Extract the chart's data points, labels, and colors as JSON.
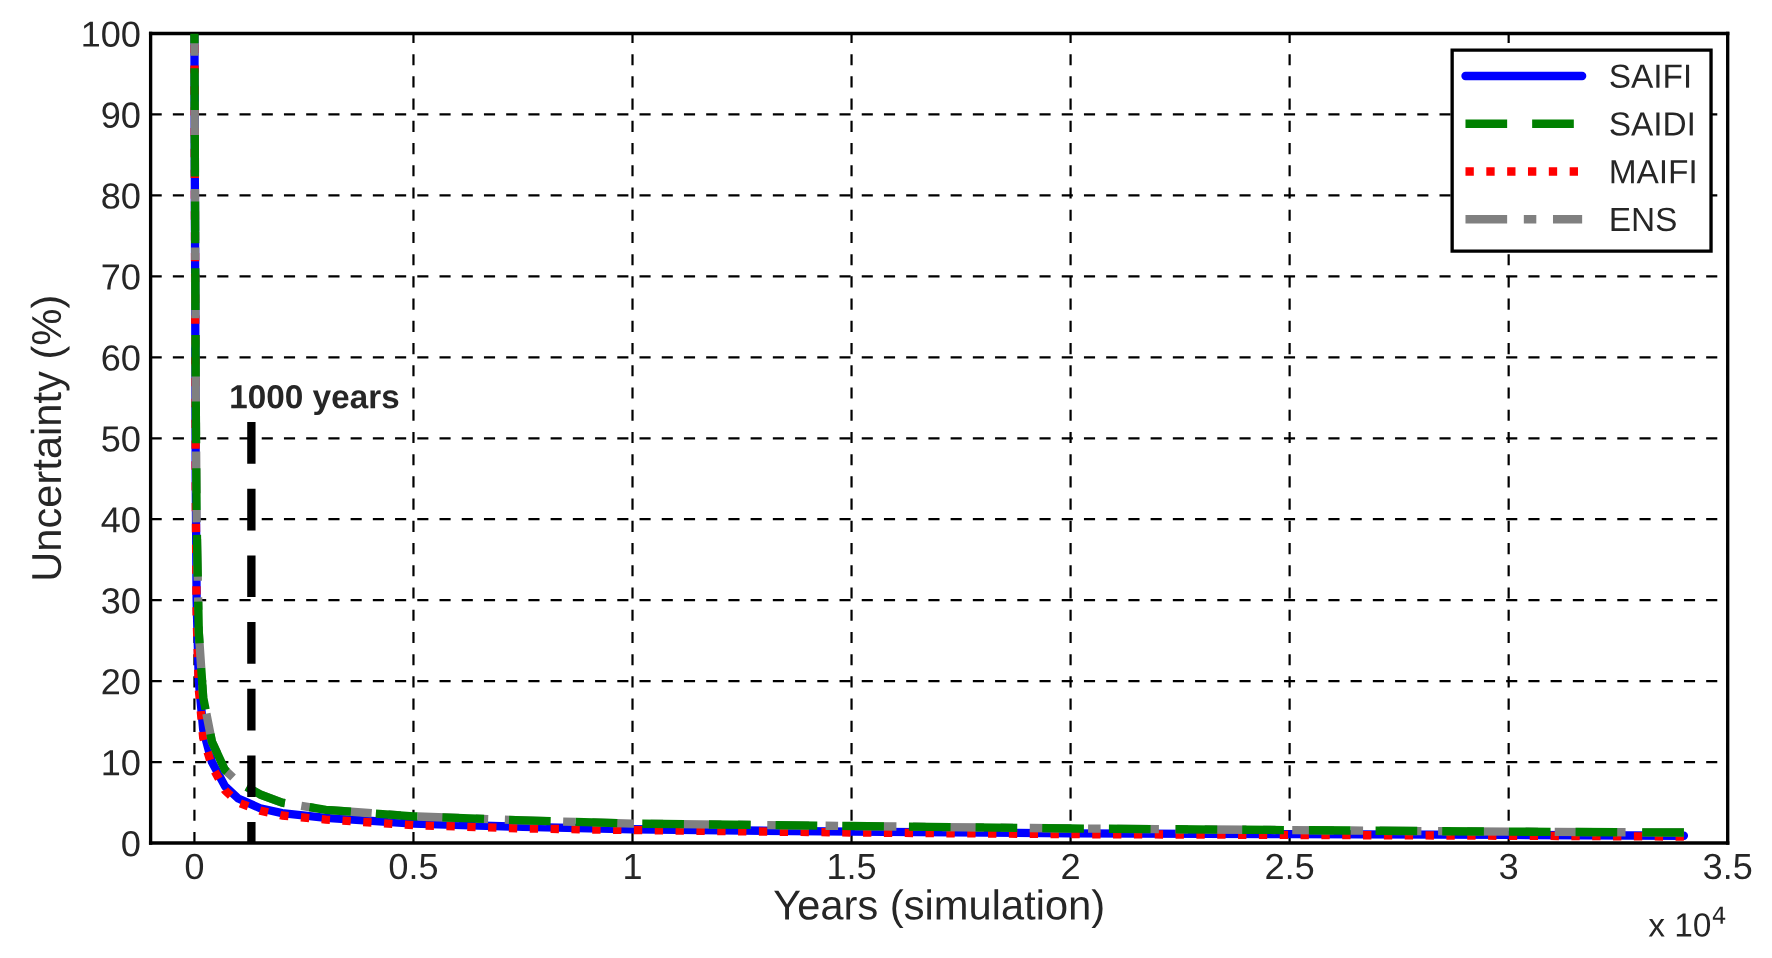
{
  "chart_data": {
    "type": "line",
    "xlabel": "Years (simulation)",
    "ylabel": "Uncertainty (%)",
    "x": [
      0,
      0.003,
      0.005,
      0.01,
      0.02,
      0.04,
      0.07,
      0.1,
      0.15,
      0.2,
      0.3,
      0.5,
      0.75,
      1,
      1.5,
      2,
      2.5,
      3,
      3.4
    ],
    "series": [
      {
        "name": "SAIFI",
        "color": "#0000ff",
        "line_style": "solid",
        "values": [
          100,
          45,
          30,
          20,
          14,
          10,
          7,
          5.5,
          4.3,
          3.7,
          3.1,
          2.4,
          2,
          1.7,
          1.4,
          1.2,
          1.1,
          1,
          0.9
        ]
      },
      {
        "name": "SAIDI",
        "color": "#008000",
        "line_style": "dashed",
        "values": [
          100,
          55,
          40,
          26,
          18,
          12.5,
          9,
          7.5,
          6,
          5,
          4.1,
          3.3,
          2.8,
          2.4,
          2.1,
          1.8,
          1.6,
          1.4,
          1.3
        ]
      },
      {
        "name": "MAIFI",
        "color": "#ff0000",
        "line_style": "dotted",
        "values": [
          100,
          43,
          28,
          19,
          13,
          9.5,
          6.5,
          5,
          4,
          3.4,
          2.9,
          2.2,
          1.8,
          1.6,
          1.3,
          1.1,
          1,
          0.9,
          0.8
        ]
      },
      {
        "name": "ENS",
        "color": "#808080",
        "line_style": "dashdot",
        "values": [
          100,
          55,
          40,
          26,
          18,
          12.5,
          9,
          7.5,
          6,
          5,
          4.1,
          3.3,
          2.8,
          2.4,
          2.1,
          1.8,
          1.6,
          1.4,
          1.3
        ]
      },
      {
        "color": "#000000",
        "line_style": "dashed",
        "x": [
          0.13,
          0.13
        ],
        "values": [
          0,
          52
        ]
      }
    ],
    "annotations": [
      {
        "text": "1000 years",
        "x": 0.13,
        "y": 52
      },
      "x 10$^{4}$"
    ],
    "xlim": [
      -0.1,
      3.5
    ],
    "xticks": [
      0,
      0.5,
      1,
      1.5,
      2,
      2.5,
      3,
      3.5
    ],
    "ylim": [
      0,
      100
    ],
    "yticks": [
      0,
      10,
      20,
      30,
      40,
      50,
      60,
      70,
      80,
      90,
      100
    ],
    "grid": true,
    "legend": "top right"
  }
}
